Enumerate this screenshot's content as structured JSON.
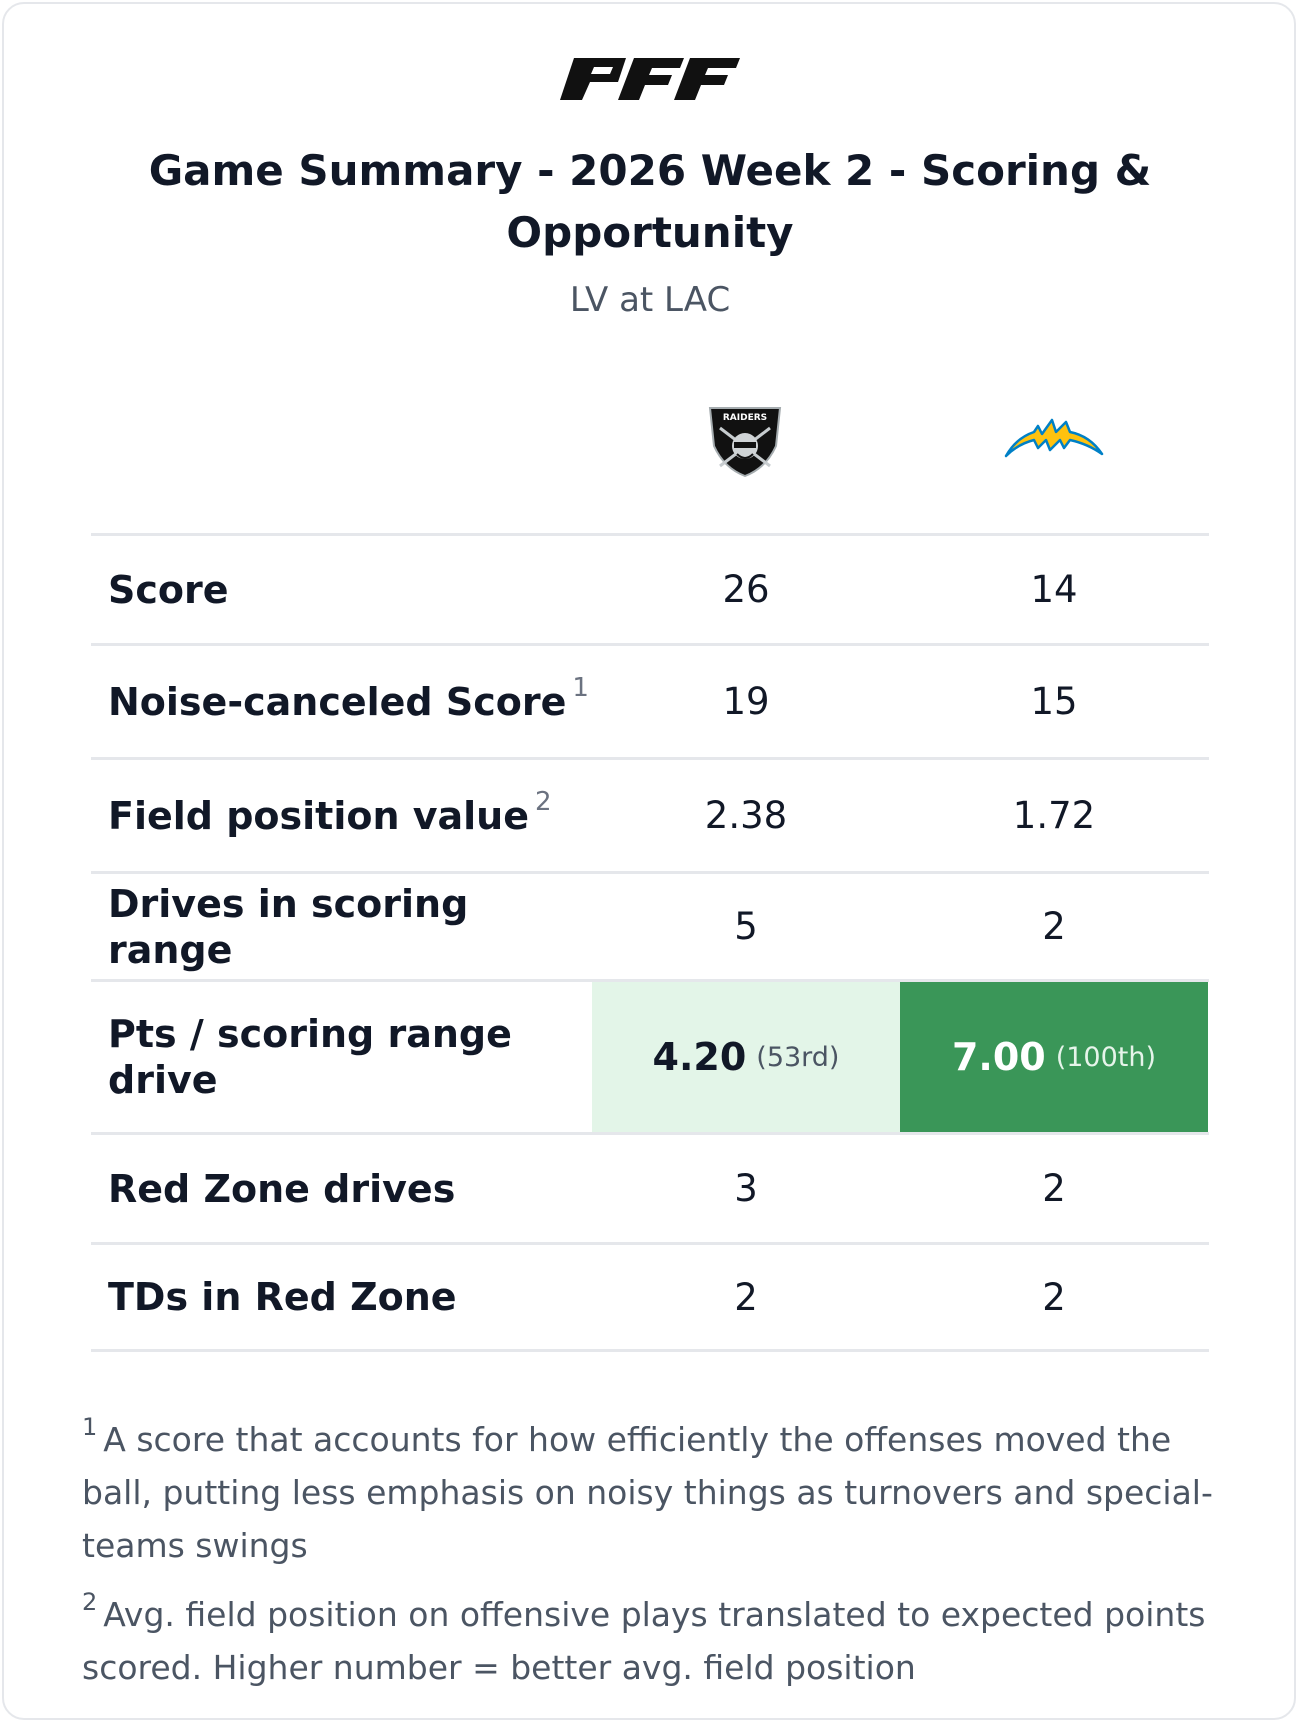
{
  "header": {
    "brand": "PFF",
    "title": "Game Summary - 2026 Week 2 - Scoring & Opportunity",
    "subtitle": "LV at LAC"
  },
  "teams": {
    "away": {
      "logo_icon": "raiders-shield-logo",
      "logo_text": "RAIDERS"
    },
    "home": {
      "logo_icon": "chargers-bolt-logo"
    }
  },
  "colors": {
    "highlight_light": "#e3f5e8",
    "highlight_dark": "#3a9658"
  },
  "rows": [
    {
      "label": "Score",
      "away": "26",
      "home": "14"
    },
    {
      "label": "Noise-canceled Score",
      "sup": "1",
      "away": "19",
      "home": "15"
    },
    {
      "label": "Field position value",
      "sup": "2",
      "away": "2.38",
      "home": "1.72"
    },
    {
      "label": "Drives in scoring range",
      "away": "5",
      "home": "2"
    },
    {
      "label": "Pts / scoring range drive",
      "away": "4.20",
      "away_rank": "(53rd)",
      "home": "7.00",
      "home_rank": "(100th)"
    },
    {
      "label": "Red Zone drives",
      "away": "3",
      "home": "2"
    },
    {
      "label": "TDs in Red Zone",
      "away": "2",
      "home": "2"
    }
  ],
  "footnotes": [
    {
      "marker": "1",
      "text": "A score that accounts for how efficiently the offenses moved the ball, putting less emphasis on noisy things as turnovers and special-teams swings"
    },
    {
      "marker": "2",
      "text": "Avg. field position on offensive plays translated to expected points scored. Higher number = better avg. field position"
    }
  ]
}
